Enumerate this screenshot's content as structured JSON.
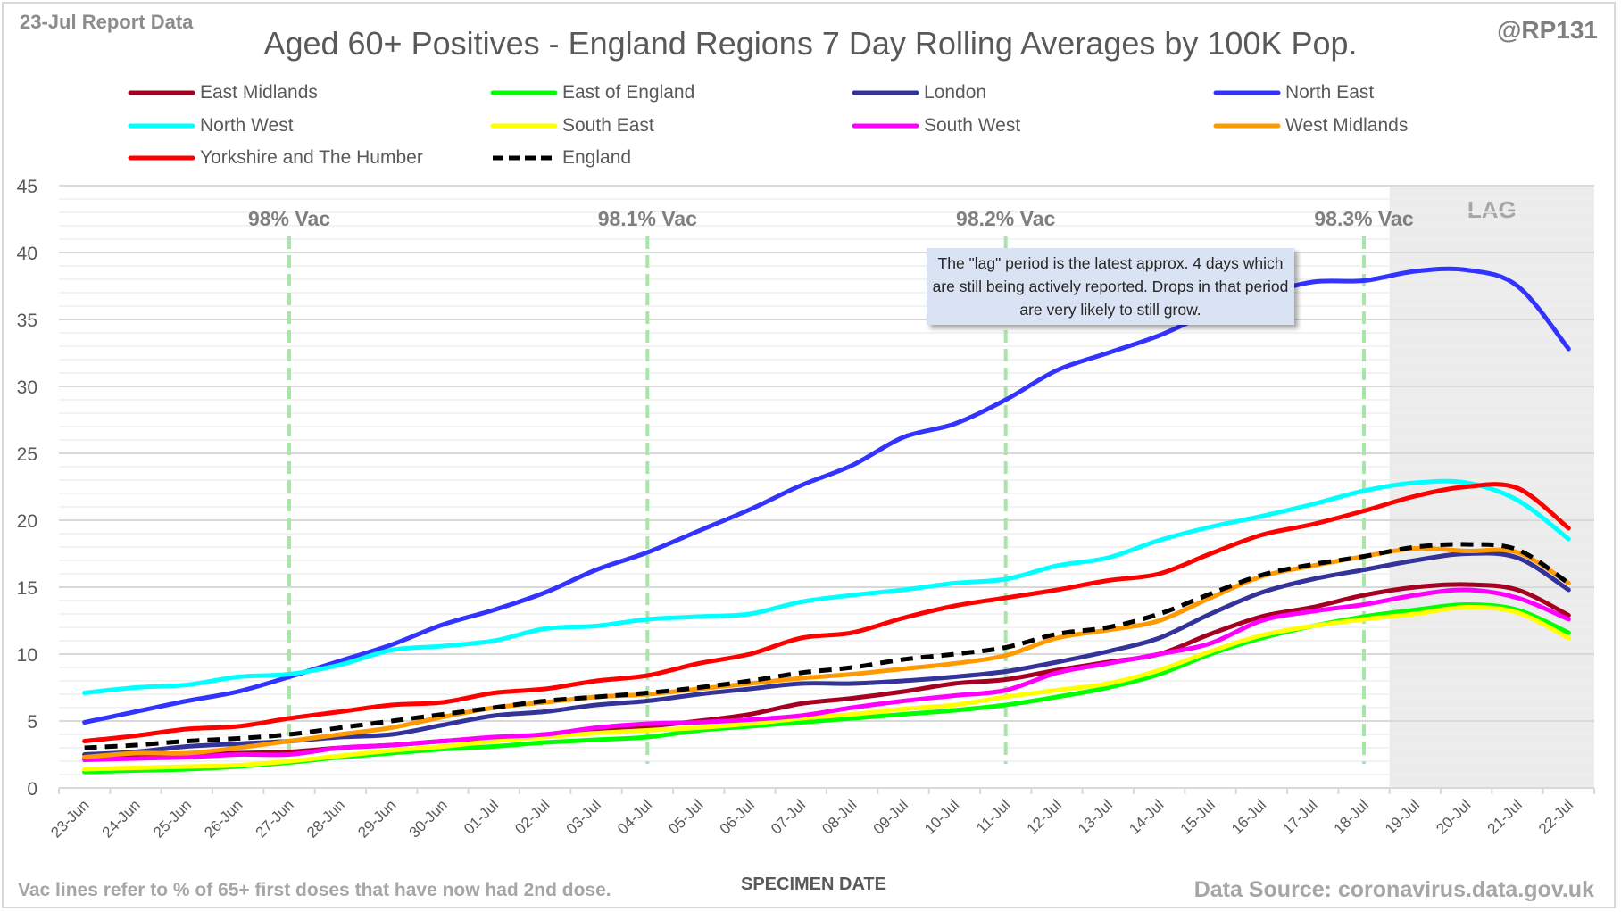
{
  "header": {
    "report_date": "23-Jul Report Data",
    "title": "Aged 60+ Positives - England Regions 7 Day Rolling Averages by 100K Pop.",
    "handle": "@RP131"
  },
  "footer": {
    "footnote": "Vac lines refer to % of 65+ first doses that have now had 2nd dose.",
    "source": "Data Source: coronavirus.data.gov.uk"
  },
  "annotation": {
    "lag_label": "LAG",
    "lag_note": "The \"lag\" period is the latest approx. 4 days which are still being actively reported.  Drops in that period are very likely to still grow.",
    "lag_start": "19-Jul",
    "lag_end": "22-Jul",
    "vac_lines": [
      {
        "date": "27-Jun",
        "label": "98% Vac"
      },
      {
        "date": "04-Jul",
        "label": "98.1% Vac"
      },
      {
        "date": "11-Jul",
        "label": "98.2% Vac"
      },
      {
        "date": "18-Jul",
        "label": "98.3% Vac"
      }
    ]
  },
  "chart_data": {
    "type": "line",
    "title": "Aged 60+ Positives - England Regions 7 Day Rolling Averages by 100K Pop.",
    "xlabel": "SPECIMEN DATE",
    "ylabel": "",
    "ylim": [
      0,
      45
    ],
    "yticks": [
      0,
      5,
      10,
      15,
      20,
      25,
      30,
      35,
      40,
      45
    ],
    "grid": "major every 5, minor every 1",
    "legend_position": "top",
    "categories": [
      "23-Jun",
      "24-Jun",
      "25-Jun",
      "26-Jun",
      "27-Jun",
      "28-Jun",
      "29-Jun",
      "30-Jun",
      "01-Jul",
      "02-Jul",
      "03-Jul",
      "04-Jul",
      "05-Jul",
      "06-Jul",
      "07-Jul",
      "08-Jul",
      "09-Jul",
      "10-Jul",
      "11-Jul",
      "12-Jul",
      "13-Jul",
      "14-Jul",
      "15-Jul",
      "16-Jul",
      "17-Jul",
      "18-Jul",
      "19-Jul",
      "20-Jul",
      "21-Jul",
      "22-Jul"
    ],
    "series": [
      {
        "name": "East Midlands",
        "color": "#a50021",
        "dash": false,
        "values": [
          2.2,
          2.4,
          2.5,
          2.6,
          2.7,
          3.0,
          3.2,
          3.5,
          3.7,
          4.0,
          4.3,
          4.6,
          5.0,
          5.5,
          6.3,
          6.7,
          7.2,
          7.8,
          8.1,
          8.8,
          9.4,
          10.0,
          11.5,
          12.8,
          13.5,
          14.4,
          15.0,
          15.2,
          14.8,
          12.9
        ]
      },
      {
        "name": "East of England",
        "color": "#00ff00",
        "dash": false,
        "values": [
          1.2,
          1.3,
          1.4,
          1.6,
          1.9,
          2.3,
          2.6,
          2.9,
          3.1,
          3.4,
          3.6,
          3.8,
          4.3,
          4.6,
          4.9,
          5.2,
          5.5,
          5.8,
          6.2,
          6.8,
          7.5,
          8.5,
          10.0,
          11.2,
          12.1,
          12.8,
          13.3,
          13.7,
          13.3,
          11.6
        ]
      },
      {
        "name": "London",
        "color": "#333399",
        "dash": false,
        "values": [
          2.5,
          2.7,
          3.1,
          3.3,
          3.5,
          3.8,
          4.0,
          4.7,
          5.4,
          5.7,
          6.2,
          6.5,
          7.0,
          7.4,
          7.8,
          7.8,
          8.0,
          8.3,
          8.7,
          9.4,
          10.2,
          11.2,
          13.0,
          14.6,
          15.6,
          16.3,
          17.0,
          17.5,
          17.2,
          14.8
        ]
      },
      {
        "name": "North East",
        "color": "#3333ff",
        "dash": false,
        "values": [
          4.9,
          5.7,
          6.5,
          7.2,
          8.3,
          9.5,
          10.7,
          12.2,
          13.3,
          14.6,
          16.3,
          17.6,
          19.2,
          20.8,
          22.6,
          24.1,
          26.2,
          27.2,
          29.0,
          31.2,
          32.5,
          33.8,
          35.5,
          36.8,
          37.8,
          37.9,
          38.6,
          38.7,
          37.5,
          32.8
        ]
      },
      {
        "name": "North West",
        "color": "#00ffff",
        "dash": false,
        "values": [
          7.1,
          7.5,
          7.7,
          8.3,
          8.5,
          9.2,
          10.3,
          10.6,
          11.0,
          11.9,
          12.1,
          12.6,
          12.8,
          13.0,
          13.9,
          14.4,
          14.8,
          15.3,
          15.6,
          16.6,
          17.2,
          18.5,
          19.5,
          20.3,
          21.2,
          22.2,
          22.8,
          22.8,
          21.5,
          18.6
        ]
      },
      {
        "name": "South East",
        "color": "#ffff00",
        "dash": false,
        "values": [
          1.4,
          1.5,
          1.6,
          1.7,
          2.0,
          2.4,
          2.8,
          3.1,
          3.5,
          3.8,
          4.1,
          4.3,
          4.5,
          4.8,
          5.2,
          5.5,
          5.9,
          6.2,
          6.8,
          7.3,
          7.8,
          8.8,
          10.2,
          11.4,
          12.1,
          12.6,
          13.0,
          13.5,
          13.1,
          11.2
        ]
      },
      {
        "name": "South West",
        "color": "#ff00ff",
        "dash": false,
        "values": [
          2.1,
          2.2,
          2.3,
          2.5,
          2.5,
          3.0,
          3.2,
          3.5,
          3.8,
          4.0,
          4.5,
          4.8,
          4.9,
          5.1,
          5.4,
          6.0,
          6.5,
          6.9,
          7.3,
          8.6,
          9.3,
          10.0,
          10.8,
          12.5,
          13.2,
          13.7,
          14.4,
          14.8,
          14.2,
          12.6
        ]
      },
      {
        "name": "West Midlands",
        "color": "#ff9900",
        "dash": false,
        "values": [
          2.3,
          2.6,
          2.6,
          3.0,
          3.5,
          4.0,
          4.5,
          5.3,
          6.0,
          6.4,
          6.8,
          7.0,
          7.4,
          7.8,
          8.2,
          8.5,
          8.9,
          9.3,
          9.9,
          11.2,
          11.8,
          12.5,
          14.2,
          15.8,
          16.6,
          17.3,
          17.9,
          17.7,
          17.6,
          15.3
        ]
      },
      {
        "name": "Yorkshire and The Humber",
        "color": "#ff0000",
        "dash": false,
        "values": [
          3.5,
          3.9,
          4.4,
          4.6,
          5.2,
          5.7,
          6.2,
          6.4,
          7.1,
          7.4,
          8.0,
          8.4,
          9.3,
          10.0,
          11.2,
          11.6,
          12.7,
          13.6,
          14.2,
          14.8,
          15.5,
          16.0,
          17.5,
          18.9,
          19.7,
          20.7,
          21.8,
          22.5,
          22.4,
          19.4
        ]
      },
      {
        "name": "England",
        "color": "#000000",
        "dash": true,
        "values": [
          3.0,
          3.2,
          3.5,
          3.7,
          4.0,
          4.5,
          5.0,
          5.5,
          6.0,
          6.5,
          6.8,
          7.1,
          7.5,
          8.0,
          8.6,
          9.0,
          9.6,
          10.0,
          10.5,
          11.5,
          12.0,
          13.0,
          14.5,
          15.9,
          16.7,
          17.3,
          18.0,
          18.2,
          17.8,
          15.3
        ]
      }
    ]
  }
}
